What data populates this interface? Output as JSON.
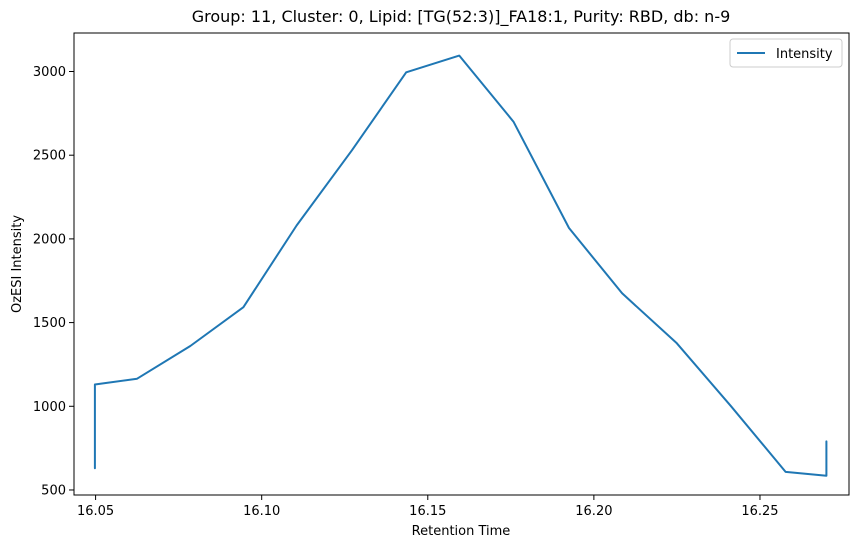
{
  "chart_data": {
    "type": "line",
    "title": "Group: 11, Cluster: 0, Lipid: [TG(52:3)]_FA18:1, Purity: RBD, db: n-9",
    "xlabel": "Retention Time",
    "ylabel": "OzESI Intensity",
    "xlim": [
      16.0435,
      16.2768
    ],
    "ylim": [
      470,
      3230
    ],
    "x_ticks": [
      16.05,
      16.1,
      16.15,
      16.2,
      16.25
    ],
    "x_tick_labels": [
      "16.05",
      "16.10",
      "16.15",
      "16.20",
      "16.25"
    ],
    "y_ticks": [
      500,
      1000,
      1500,
      2000,
      2500,
      3000
    ],
    "y_tick_labels": [
      "500",
      "1000",
      "1500",
      "2000",
      "2500",
      "3000"
    ],
    "grid": false,
    "legend": {
      "position": "top-right",
      "entries": [
        "Intensity"
      ]
    },
    "series": [
      {
        "name": "Intensity",
        "color": "#1f77b4",
        "x": [
          16.0498,
          16.0498,
          16.0498,
          16.0498,
          16.0625,
          16.0785,
          16.0945,
          16.1105,
          16.1272,
          16.1435,
          16.1595,
          16.1758,
          16.1925,
          16.2085,
          16.2248,
          16.2413,
          16.2577,
          16.27,
          16.27,
          16.27
        ],
        "y": [
          950,
          630,
          850,
          1130,
          1165,
          1360,
          1592,
          2080,
          2530,
          2995,
          3095,
          2700,
          2065,
          1675,
          1380,
          1000,
          608,
          585,
          790,
          680
        ]
      }
    ]
  }
}
